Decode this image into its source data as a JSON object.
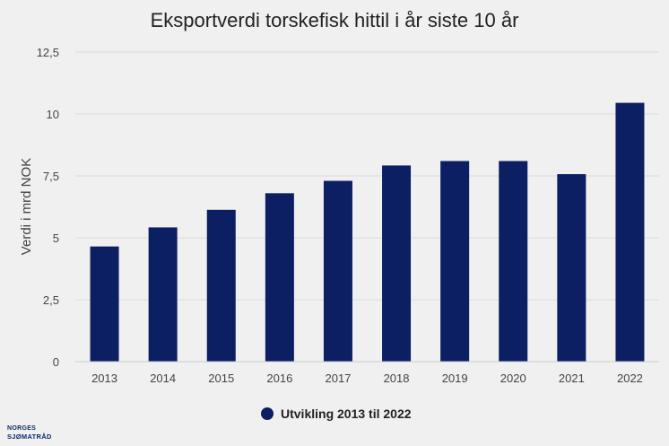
{
  "chart_data": {
    "type": "bar",
    "title": "Eksportverdi torskefisk hittil i år siste 10 år",
    "ylabel": "Verdi i mrd NOK",
    "xlabel": "",
    "ylim": [
      0,
      12.5
    ],
    "yticks": [
      0,
      2.5,
      5,
      7.5,
      10,
      12.5
    ],
    "ytick_labels": [
      "0",
      "2,5",
      "5",
      "7,5",
      "10",
      "12,5"
    ],
    "categories": [
      "2013",
      "2014",
      "2015",
      "2016",
      "2017",
      "2018",
      "2019",
      "2020",
      "2021",
      "2022"
    ],
    "series": [
      {
        "name": "Utvikling 2013 til 2022",
        "color": "#0c1f63",
        "values": [
          4.65,
          5.42,
          6.13,
          6.8,
          7.3,
          7.92,
          8.1,
          8.1,
          7.57,
          10.45
        ]
      }
    ],
    "grid": true,
    "legend_position": "bottom-center"
  },
  "logo": {
    "line1": "NORGES",
    "line2": "SJØMATRÅD"
  }
}
